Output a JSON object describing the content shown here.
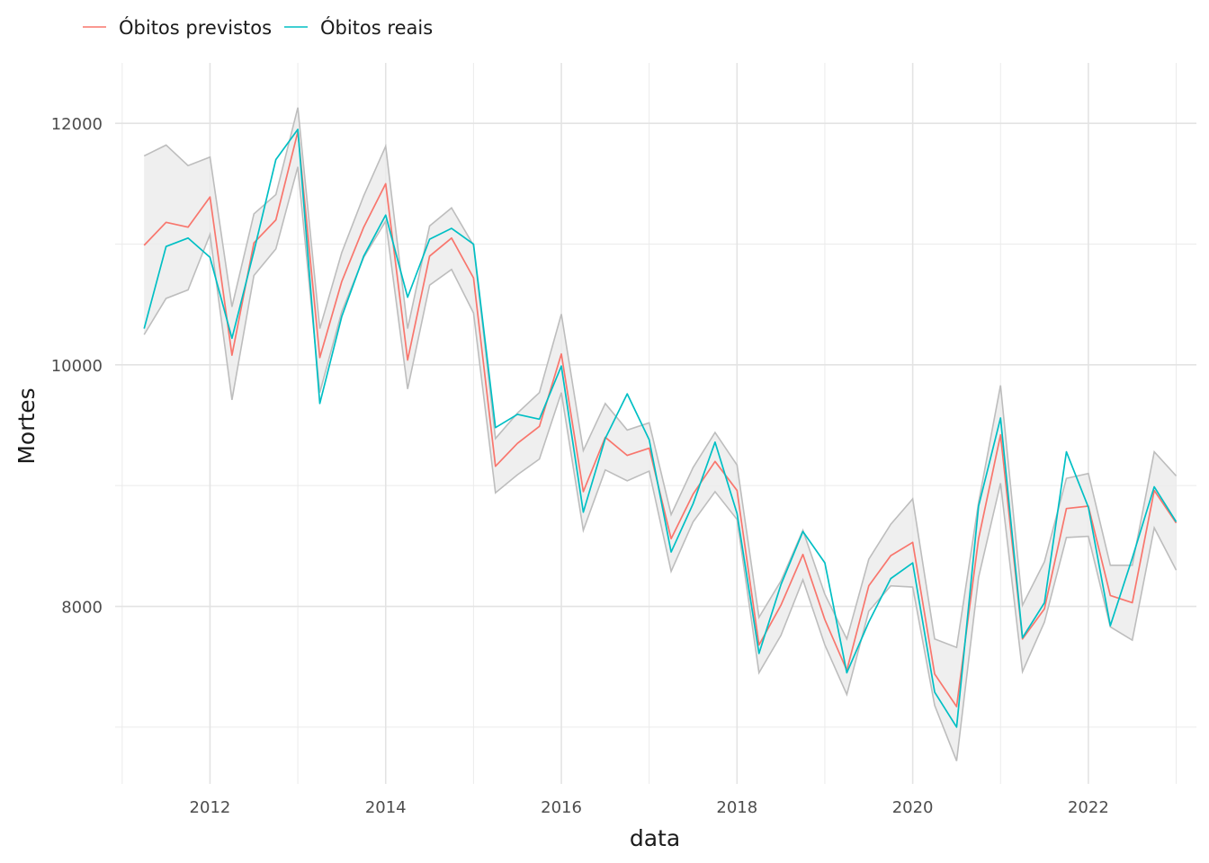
{
  "chart_data": {
    "type": "line",
    "xlabel": "data",
    "ylabel": "Mortes",
    "xlim": [
      2010.92,
      2023.23
    ],
    "ylim": [
      6530,
      12500
    ],
    "x_ticks": [
      2012,
      2014,
      2016,
      2018,
      2020,
      2022
    ],
    "x_tick_labels": [
      "2012",
      "2014",
      "2016",
      "2018",
      "2020",
      "2022"
    ],
    "y_ticks": [
      8000,
      10000,
      12000
    ],
    "y_tick_labels": [
      "8000",
      "10000",
      "12000"
    ],
    "grid": true,
    "legend_position": "top-left",
    "x": [
      2011.25,
      2011.5,
      2011.75,
      2012.0,
      2012.25,
      2012.5,
      2012.75,
      2013.0,
      2013.25,
      2013.5,
      2013.75,
      2014.0,
      2014.25,
      2014.5,
      2014.75,
      2015.0,
      2015.25,
      2015.5,
      2015.75,
      2016.0,
      2016.25,
      2016.5,
      2016.75,
      2017.0,
      2017.25,
      2017.5,
      2017.75,
      2018.0,
      2018.25,
      2018.5,
      2018.75,
      2019.0,
      2019.25,
      2019.5,
      2019.75,
      2020.0,
      2020.25,
      2020.5,
      2020.75,
      2021.0,
      2021.25,
      2021.5,
      2021.75,
      2022.0,
      2022.25,
      2022.5,
      2022.75,
      2023.0
    ],
    "series": [
      {
        "name": "Óbitos previstos",
        "color": "#F8766D",
        "values": [
          10990,
          11180,
          11140,
          11390,
          10080,
          11010,
          11200,
          11930,
          10060,
          10690,
          11140,
          11500,
          10040,
          10900,
          11050,
          10720,
          9160,
          9350,
          9490,
          10090,
          8950,
          9400,
          9250,
          9310,
          8560,
          8930,
          9200,
          8960,
          7680,
          8010,
          8430,
          7890,
          7470,
          8170,
          8420,
          8530,
          7440,
          7170,
          8560,
          9420,
          7730,
          7980,
          8810,
          8830,
          8090,
          8030,
          8960,
          8690
        ]
      },
      {
        "name": "Óbitos reais",
        "color": "#00BFC4",
        "values": [
          10300,
          10980,
          11050,
          10890,
          10220,
          10940,
          11700,
          11950,
          9680,
          10400,
          10900,
          11240,
          10560,
          11040,
          11130,
          11000,
          9480,
          9590,
          9550,
          9990,
          8780,
          9390,
          9760,
          9380,
          8450,
          8850,
          9360,
          8770,
          7610,
          8180,
          8620,
          8360,
          7450,
          7870,
          8230,
          8360,
          7290,
          7000,
          8830,
          9560,
          7740,
          8030,
          9280,
          8820,
          7840,
          8400,
          8990,
          8700
        ]
      }
    ],
    "band": {
      "color": "#EBEBEB",
      "edge_color": "#BDBDBD",
      "upper": [
        11730,
        11820,
        11650,
        11720,
        10480,
        11250,
        11410,
        12130,
        10300,
        10930,
        11400,
        11810,
        10300,
        11150,
        11300,
        10990,
        9390,
        9600,
        9770,
        10420,
        9290,
        9680,
        9460,
        9520,
        8760,
        9150,
        9440,
        9170,
        7910,
        8210,
        8630,
        8100,
        7730,
        8390,
        8680,
        8890,
        7730,
        7660,
        8860,
        9830,
        8010,
        8370,
        9060,
        9100,
        8340,
        8340,
        9280,
        9080
      ],
      "lower": [
        10250,
        10550,
        10620,
        11080,
        9710,
        10740,
        10960,
        11640,
        9770,
        10440,
        10890,
        11190,
        9800,
        10660,
        10790,
        10430,
        8940,
        9090,
        9220,
        9770,
        8630,
        9130,
        9040,
        9120,
        8290,
        8700,
        8950,
        8720,
        7450,
        7760,
        8220,
        7680,
        7270,
        7960,
        8170,
        8160,
        7180,
        6720,
        8240,
        9020,
        7460,
        7870,
        8570,
        8580,
        7830,
        7720,
        8650,
        8300
      ]
    }
  }
}
